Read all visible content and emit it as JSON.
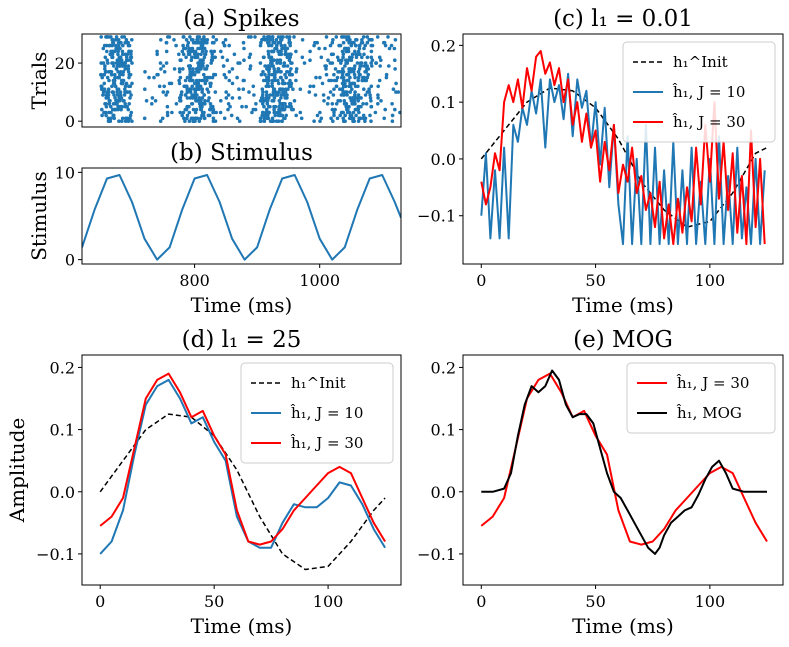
{
  "chart_data": [
    {
      "id": "a",
      "type": "scatter",
      "title": "(a) Spikes",
      "ylabel": "Trials",
      "xlim": [
        620,
        1130
      ],
      "ylim": [
        -2,
        30
      ],
      "yticks": [
        0,
        20
      ],
      "ytick_labels": [
        "0",
        "20"
      ],
      "color": "#1f77b4",
      "trials": 30,
      "bursts": [
        {
          "range": [
            650,
            700
          ],
          "count": 9
        },
        {
          "range": [
            655,
            690
          ],
          "count": 3
        },
        {
          "range": [
            720,
            775
          ],
          "count": 2
        },
        {
          "range": [
            775,
            835
          ],
          "count": 9
        },
        {
          "range": [
            785,
            815
          ],
          "count": 4
        },
        {
          "range": [
            840,
            900
          ],
          "count": 3
        },
        {
          "range": [
            905,
            955
          ],
          "count": 9
        },
        {
          "range": [
            915,
            945
          ],
          "count": 4
        },
        {
          "range": [
            955,
            1020
          ],
          "count": 3
        },
        {
          "range": [
            1020,
            1085
          ],
          "count": 9
        },
        {
          "range": [
            1035,
            1065
          ],
          "count": 4
        },
        {
          "range": [
            1085,
            1130
          ],
          "count": 2
        }
      ]
    },
    {
      "id": "b",
      "type": "line",
      "title": "(b) Stimulus",
      "xlabel": "Time (ms)",
      "ylabel": "Stimulus",
      "xlim": [
        620,
        1130
      ],
      "ylim": [
        -0.5,
        10.5
      ],
      "xticks": [
        800,
        1000
      ],
      "xtick_labels": [
        "800",
        "1000"
      ],
      "yticks": [
        0,
        10
      ],
      "ytick_labels": [
        "0",
        "10"
      ],
      "series": [
        {
          "name": "stimulus",
          "color": "#1f77b4",
          "x": [
            620,
            640,
            660,
            680,
            700,
            720,
            740,
            760,
            780,
            800,
            820,
            840,
            860,
            880,
            900,
            920,
            940,
            960,
            980,
            1000,
            1020,
            1040,
            1060,
            1080,
            1100,
            1120,
            1130
          ],
          "y": [
            1.4,
            5.7,
            9.3,
            9.7,
            6.6,
            2.4,
            0.0,
            1.4,
            5.7,
            9.3,
            9.7,
            6.6,
            2.4,
            0.0,
            1.4,
            5.7,
            9.3,
            9.7,
            6.6,
            2.4,
            0.0,
            1.4,
            5.7,
            9.3,
            9.7,
            6.6,
            4.8
          ]
        }
      ]
    },
    {
      "id": "c",
      "type": "line",
      "title": "(c) l₁ = 0.01",
      "xlabel": "Time (ms)",
      "xlim": [
        -8,
        132
      ],
      "ylim": [
        -0.185,
        0.22
      ],
      "xticks": [
        0,
        50,
        100
      ],
      "xtick_labels": [
        "0",
        "50",
        "100"
      ],
      "yticks": [
        -0.1,
        0.0,
        0.1,
        0.2
      ],
      "ytick_labels": [
        "−0.1",
        "0.0",
        "0.1",
        "0.2"
      ],
      "legend_position": "top-right",
      "series": [
        {
          "name": "h₁^Init",
          "color": "#000000",
          "dash": true,
          "x": [
            0,
            10,
            20,
            30,
            40,
            50,
            60,
            70,
            80,
            90,
            100,
            110,
            120,
            125
          ],
          "y": [
            0.0,
            0.05,
            0.1,
            0.125,
            0.12,
            0.09,
            0.035,
            -0.04,
            -0.09,
            -0.12,
            -0.11,
            -0.06,
            0.01,
            0.02
          ]
        },
        {
          "name": "ĥ₁, J = 10",
          "color": "#1f77b4",
          "x": [
            0,
            2,
            4,
            6,
            8,
            10,
            12,
            14,
            16,
            18,
            20,
            22,
            24,
            26,
            28,
            30,
            32,
            34,
            36,
            38,
            40,
            42,
            44,
            46,
            48,
            50,
            52,
            54,
            56,
            58,
            60,
            62,
            64,
            66,
            68,
            70,
            72,
            74,
            76,
            78,
            80,
            82,
            84,
            86,
            88,
            90,
            92,
            94,
            96,
            98,
            100,
            102,
            104,
            106,
            108,
            110,
            112,
            114,
            116,
            118,
            120,
            122,
            124
          ],
          "y": [
            -0.1,
            0.01,
            -0.14,
            -0.02,
            -0.14,
            0.02,
            -0.14,
            0.06,
            0.03,
            0.09,
            0.06,
            0.12,
            0.08,
            0.14,
            0.02,
            0.14,
            0.1,
            0.13,
            0.07,
            0.15,
            0.04,
            0.14,
            0.09,
            0.12,
            0.02,
            0.1,
            -0.01,
            0.09,
            -0.05,
            0.06,
            -0.08,
            -0.15,
            0.04,
            -0.15,
            0.0,
            -0.15,
            0.06,
            -0.15,
            0.02,
            -0.15,
            -0.02,
            -0.15,
            0.03,
            -0.15,
            -0.02,
            -0.15,
            0.02,
            -0.15,
            -0.04,
            -0.15,
            0.0,
            -0.15,
            0.04,
            -0.15,
            -0.03,
            -0.15,
            0.02,
            -0.14,
            -0.05,
            -0.15,
            0.0,
            -0.15,
            -0.02
          ]
        },
        {
          "name": "ĥ₁, J = 30",
          "color": "#ff0000",
          "x": [
            0,
            2,
            4,
            6,
            8,
            10,
            12,
            14,
            16,
            18,
            20,
            22,
            24,
            26,
            28,
            30,
            32,
            34,
            36,
            38,
            40,
            42,
            44,
            46,
            48,
            50,
            52,
            54,
            56,
            58,
            60,
            62,
            64,
            66,
            68,
            70,
            72,
            74,
            76,
            78,
            80,
            82,
            84,
            86,
            88,
            90,
            92,
            94,
            96,
            98,
            100,
            102,
            104,
            106,
            108,
            110,
            112,
            114,
            116,
            118,
            120,
            122,
            124
          ],
          "y": [
            -0.04,
            -0.08,
            -0.05,
            0.01,
            -0.02,
            0.1,
            0.13,
            0.1,
            0.14,
            0.09,
            0.16,
            0.12,
            0.18,
            0.19,
            0.15,
            0.17,
            0.13,
            0.16,
            0.1,
            0.14,
            0.06,
            0.1,
            0.03,
            0.08,
            0.02,
            0.05,
            -0.04,
            0.03,
            -0.02,
            0.06,
            -0.06,
            -0.01,
            -0.04,
            0.02,
            -0.06,
            -0.03,
            -0.09,
            -0.06,
            -0.12,
            -0.04,
            -0.14,
            -0.08,
            -0.15,
            -0.07,
            -0.13,
            -0.05,
            -0.11,
            0.02,
            -0.08,
            0.06,
            -0.04,
            0.1,
            -0.07,
            0.03,
            -0.09,
            0.01,
            -0.13,
            -0.03,
            -0.15,
            0.05,
            -0.12,
            0.0,
            -0.15
          ]
        }
      ]
    },
    {
      "id": "d",
      "type": "line",
      "title": "(d) l₁ = 25",
      "xlabel": "Time (ms)",
      "ylabel": "Amplitude",
      "xlim": [
        -8,
        132
      ],
      "ylim": [
        -0.15,
        0.22
      ],
      "xticks": [
        0,
        50,
        100
      ],
      "xtick_labels": [
        "0",
        "50",
        "100"
      ],
      "yticks": [
        -0.1,
        0.0,
        0.1,
        0.2
      ],
      "ytick_labels": [
        "−0.1",
        "0.0",
        "0.1",
        "0.2"
      ],
      "legend_position": "top-right",
      "series": [
        {
          "name": "h₁^Init",
          "color": "#000000",
          "dash": true,
          "x": [
            0,
            10,
            20,
            30,
            40,
            50,
            60,
            70,
            80,
            90,
            100,
            110,
            120,
            125
          ],
          "y": [
            0.0,
            0.05,
            0.1,
            0.125,
            0.12,
            0.09,
            0.035,
            -0.04,
            -0.1,
            -0.125,
            -0.12,
            -0.08,
            -0.03,
            -0.01
          ]
        },
        {
          "name": "ĥ₁, J = 10",
          "color": "#1f77b4",
          "x": [
            0,
            5,
            10,
            15,
            20,
            25,
            30,
            35,
            40,
            45,
            50,
            55,
            60,
            65,
            70,
            75,
            80,
            85,
            90,
            95,
            100,
            105,
            110,
            115,
            120,
            125
          ],
          "y": [
            -0.1,
            -0.08,
            -0.03,
            0.06,
            0.14,
            0.17,
            0.18,
            0.15,
            0.11,
            0.12,
            0.08,
            0.05,
            -0.04,
            -0.08,
            -0.09,
            -0.09,
            -0.05,
            -0.02,
            -0.025,
            -0.025,
            -0.01,
            0.015,
            0.01,
            -0.02,
            -0.06,
            -0.09
          ]
        },
        {
          "name": "ĥ₁, J = 30",
          "color": "#ff0000",
          "x": [
            0,
            5,
            10,
            15,
            20,
            25,
            30,
            35,
            40,
            45,
            50,
            55,
            60,
            65,
            70,
            75,
            80,
            85,
            90,
            95,
            100,
            105,
            110,
            115,
            120,
            125
          ],
          "y": [
            -0.055,
            -0.04,
            -0.01,
            0.07,
            0.15,
            0.18,
            0.19,
            0.16,
            0.12,
            0.13,
            0.09,
            0.06,
            -0.03,
            -0.08,
            -0.085,
            -0.08,
            -0.06,
            -0.03,
            -0.01,
            0.01,
            0.03,
            0.04,
            0.03,
            -0.01,
            -0.05,
            -0.08
          ]
        }
      ]
    },
    {
      "id": "e",
      "type": "line",
      "title": "(e) MOG",
      "xlabel": "Time (ms)",
      "xlim": [
        -8,
        132
      ],
      "ylim": [
        -0.15,
        0.22
      ],
      "xticks": [
        0,
        50,
        100
      ],
      "xtick_labels": [
        "0",
        "50",
        "100"
      ],
      "yticks": [
        -0.1,
        0.0,
        0.1,
        0.2
      ],
      "ytick_labels": [
        "−0.1",
        "0.0",
        "0.1",
        "0.2"
      ],
      "legend_position": "top-right",
      "series": [
        {
          "name": "ĥ₁, J = 30",
          "color": "#ff0000",
          "x": [
            0,
            5,
            10,
            15,
            20,
            25,
            30,
            35,
            40,
            45,
            50,
            55,
            60,
            65,
            70,
            75,
            80,
            85,
            90,
            95,
            100,
            105,
            110,
            115,
            120,
            125
          ],
          "y": [
            -0.055,
            -0.04,
            -0.01,
            0.07,
            0.15,
            0.18,
            0.19,
            0.16,
            0.12,
            0.13,
            0.09,
            0.06,
            -0.03,
            -0.08,
            -0.085,
            -0.08,
            -0.06,
            -0.03,
            -0.01,
            0.01,
            0.03,
            0.04,
            0.03,
            -0.01,
            -0.05,
            -0.08
          ]
        },
        {
          "name": "ĥ₁, MOG",
          "color": "#000000",
          "x": [
            0,
            5,
            10,
            13,
            16,
            19,
            22,
            25,
            28,
            31,
            34,
            37,
            40,
            43,
            46,
            49,
            52,
            55,
            58,
            61,
            64,
            67,
            70,
            73,
            76,
            78,
            80,
            83,
            86,
            89,
            92,
            95,
            98,
            101,
            104,
            107,
            110,
            115,
            120,
            125
          ],
          "y": [
            0.0,
            0.0,
            0.005,
            0.03,
            0.09,
            0.14,
            0.17,
            0.16,
            0.17,
            0.195,
            0.18,
            0.14,
            0.12,
            0.125,
            0.125,
            0.11,
            0.07,
            0.03,
            0.0,
            -0.01,
            -0.03,
            -0.05,
            -0.07,
            -0.09,
            -0.1,
            -0.09,
            -0.07,
            -0.05,
            -0.04,
            -0.03,
            -0.025,
            -0.005,
            0.02,
            0.04,
            0.05,
            0.03,
            0.005,
            0.0,
            0.0,
            0.0
          ]
        }
      ]
    }
  ]
}
